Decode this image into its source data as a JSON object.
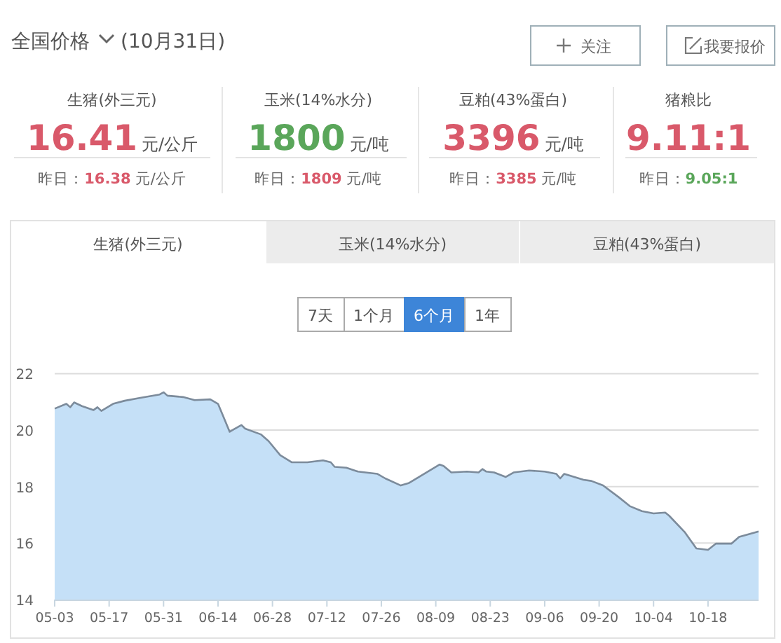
{
  "chart_data": [
    {
      "type": "other",
      "title": "全国价格",
      "subtitle": "(10月31日)",
      "annotations": [
        "关注",
        "我要报价",
        "生猪(外三元)",
        "16.41",
        "元/公斤",
        "昨日：",
        "16.38",
        "元/公斤",
        "玉米(14%水分)",
        "1800",
        "元/吨",
        "昨日：",
        "1809",
        "元/吨",
        "豆粕(43%蛋白)",
        "3396",
        "元/吨",
        "昨日：",
        "3385",
        "元/吨",
        "猪粮比",
        "9.11:1",
        "昨日：",
        "9.05:1"
      ]
    },
    {
      "type": "area",
      "annotations": [
        "生猪(外三元)",
        "玉米(14%水分)",
        "豆粕(43%蛋白)",
        "7天",
        "1个月",
        "6个月",
        "1年"
      ],
      "x": [
        "--05-03",
        "--05-06",
        "--05-07",
        "--05-08",
        "--05-10",
        "--05-13",
        "--05-14",
        "--05-15",
        "--05-18",
        "--05-21",
        "--05-25",
        "--05-30",
        "--05-31",
        "--06-01",
        "--06-05",
        "--06-08",
        "--06-12",
        "--06-14",
        "--06-15",
        "--06-17",
        "--06-18",
        "--06-20",
        "--06-21",
        "--06-25",
        "--06-27",
        "--06-30",
        "--07-03",
        "--07-07",
        "--07-11",
        "--07-13",
        "--07-14",
        "--07-17",
        "--07-20",
        "--07-25",
        "--07-27",
        "--07-31",
        "--08-02",
        "--08-05",
        "--08-10",
        "--08-11",
        "--08-13",
        "--08-17",
        "--08-20",
        "--08-21",
        "--08-22",
        "--08-24",
        "--08-27",
        "--08-29",
        "--09-02",
        "--09-06",
        "--09-09",
        "--09-10",
        "--09-11",
        "--09-16",
        "--09-18",
        "--09-21",
        "--09-25",
        "--09-28",
        "--10-01",
        "--10-04",
        "--10-07",
        "--10-08",
        "--10-12",
        "--10-15",
        "--10-18",
        "--10-20",
        "--10-24",
        "--10-26",
        "--10-31"
      ],
      "values": [
        20.76,
        20.93,
        20.81,
        20.98,
        20.85,
        20.71,
        20.81,
        20.68,
        20.93,
        21.04,
        21.14,
        21.26,
        21.34,
        21.22,
        21.17,
        21.06,
        21.09,
        20.93,
        20.6,
        19.94,
        20.02,
        20.18,
        20.05,
        19.85,
        19.61,
        19.11,
        18.86,
        18.86,
        18.93,
        18.86,
        18.7,
        18.67,
        18.53,
        18.45,
        18.29,
        18.04,
        18.12,
        18.37,
        18.78,
        18.73,
        18.5,
        18.53,
        18.5,
        18.62,
        18.53,
        18.5,
        18.34,
        18.5,
        18.57,
        18.53,
        18.45,
        18.29,
        18.45,
        18.24,
        18.2,
        18.04,
        17.63,
        17.3,
        17.13,
        17.05,
        17.08,
        16.97,
        16.39,
        15.81,
        15.76,
        15.98,
        15.98,
        16.22,
        16.41
      ],
      "color": "#c5e0f7",
      "xlim": [
        "--05-03",
        "--10-31"
      ],
      "xticks": [
        {
          "value": "--05-03",
          "label": "05-03"
        },
        {
          "value": "--05-17",
          "label": "05-17"
        },
        {
          "value": "--05-31",
          "label": "05-31"
        },
        {
          "value": "--06-14",
          "label": "06-14"
        },
        {
          "value": "--06-28",
          "label": "06-28"
        },
        {
          "value": "--07-12",
          "label": "07-12"
        },
        {
          "value": "--07-26",
          "label": "07-26"
        },
        {
          "value": "--08-09",
          "label": "08-09"
        },
        {
          "value": "--08-23",
          "label": "08-23"
        },
        {
          "value": "--09-06",
          "label": "09-06"
        },
        {
          "value": "--09-20",
          "label": "09-20"
        },
        {
          "value": "--10-04",
          "label": "10-04"
        },
        {
          "value": "--10-18",
          "label": "10-18"
        }
      ],
      "ylim": [
        14,
        22
      ],
      "yticks": [
        14,
        16,
        18,
        20,
        22
      ],
      "grid": "y"
    }
  ]
}
